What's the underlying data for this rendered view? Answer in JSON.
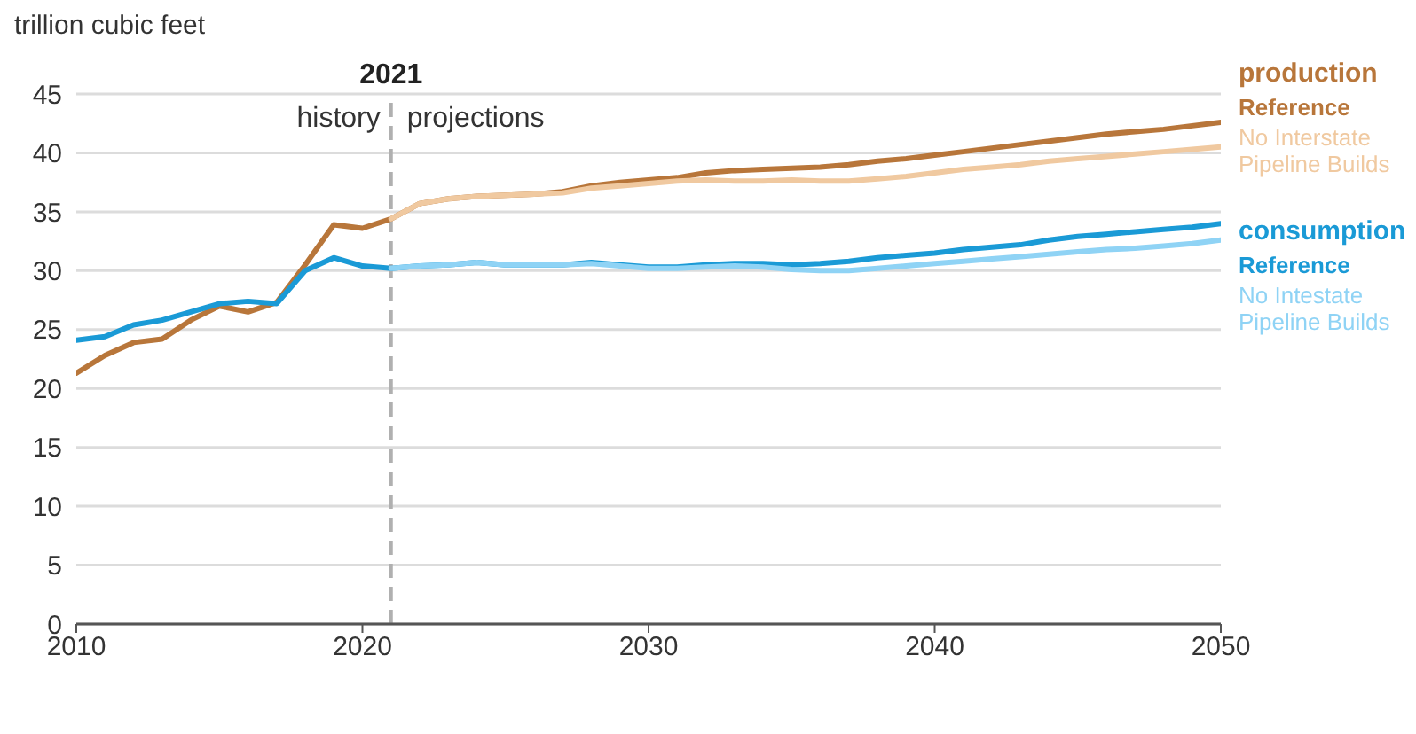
{
  "chart_data": {
    "type": "line",
    "ylabel": "trillion cubic feet",
    "xlim": [
      2010,
      2050
    ],
    "xticks": [
      2010,
      2020,
      2030,
      2040,
      2050
    ],
    "ylim": [
      0,
      45
    ],
    "yticks": [
      0,
      5,
      10,
      15,
      20,
      25,
      30,
      35,
      40,
      45
    ],
    "grid": "y",
    "legend": "right",
    "line_style": "solid",
    "marker": "none",
    "series": [
      {
        "name": "Reference",
        "color": "#b8763a",
        "x": [
          2010,
          2011,
          2012,
          2013,
          2014,
          2015,
          2016,
          2017,
          2018,
          2019,
          2020,
          2021,
          2022,
          2023,
          2024,
          2025,
          2026,
          2027,
          2028,
          2029,
          2030,
          2031,
          2032,
          2033,
          2034,
          2035,
          2036,
          2037,
          2038,
          2039,
          2040,
          2041,
          2042,
          2043,
          2044,
          2045,
          2046,
          2047,
          2048,
          2049,
          2050
        ],
        "values": [
          21.3,
          22.8,
          23.9,
          24.2,
          25.8,
          27.0,
          26.5,
          27.3,
          30.5,
          33.9,
          33.6,
          34.4,
          35.7,
          36.1,
          36.3,
          36.4,
          36.5,
          36.7,
          37.2,
          37.5,
          37.7,
          37.9,
          38.3,
          38.5,
          38.6,
          38.7,
          38.8,
          39.0,
          39.3,
          39.5,
          39.8,
          40.1,
          40.4,
          40.7,
          41.0,
          41.3,
          41.6,
          41.8,
          42.0,
          42.3,
          42.6
        ]
      },
      {
        "name": "No Interstate Pipeline Builds",
        "color": "#f0c9a0",
        "x": [
          2021,
          2022,
          2023,
          2024,
          2025,
          2026,
          2027,
          2028,
          2029,
          2030,
          2031,
          2032,
          2033,
          2034,
          2035,
          2036,
          2037,
          2038,
          2039,
          2040,
          2041,
          2042,
          2043,
          2044,
          2045,
          2046,
          2047,
          2048,
          2049,
          2050
        ],
        "values": [
          34.4,
          35.7,
          36.1,
          36.3,
          36.4,
          36.5,
          36.6,
          37.0,
          37.2,
          37.4,
          37.6,
          37.7,
          37.6,
          37.6,
          37.7,
          37.6,
          37.6,
          37.8,
          38.0,
          38.3,
          38.6,
          38.8,
          39.0,
          39.3,
          39.5,
          39.7,
          39.9,
          40.1,
          40.3,
          40.5
        ]
      },
      {
        "name": "Reference",
        "color": "#1a9ad6",
        "x": [
          2010,
          2011,
          2012,
          2013,
          2014,
          2015,
          2016,
          2017,
          2018,
          2019,
          2020,
          2021,
          2022,
          2023,
          2024,
          2025,
          2026,
          2027,
          2028,
          2029,
          2030,
          2031,
          2032,
          2033,
          2034,
          2035,
          2036,
          2037,
          2038,
          2039,
          2040,
          2041,
          2042,
          2043,
          2044,
          2045,
          2046,
          2047,
          2048,
          2049,
          2050
        ],
        "values": [
          24.1,
          24.4,
          25.4,
          25.8,
          26.5,
          27.2,
          27.4,
          27.2,
          30.0,
          31.1,
          30.4,
          30.2,
          30.4,
          30.5,
          30.7,
          30.5,
          30.5,
          30.5,
          30.7,
          30.5,
          30.3,
          30.3,
          30.5,
          30.6,
          30.6,
          30.5,
          30.6,
          30.8,
          31.1,
          31.3,
          31.5,
          31.8,
          32.0,
          32.2,
          32.6,
          32.9,
          33.1,
          33.3,
          33.5,
          33.7,
          34.0
        ]
      },
      {
        "name": "No Intestate Pipeline Builds",
        "color": "#8fd3f5",
        "x": [
          2021,
          2022,
          2023,
          2024,
          2025,
          2026,
          2027,
          2028,
          2029,
          2030,
          2031,
          2032,
          2033,
          2034,
          2035,
          2036,
          2037,
          2038,
          2039,
          2040,
          2041,
          2042,
          2043,
          2044,
          2045,
          2046,
          2047,
          2048,
          2049,
          2050
        ],
        "values": [
          30.2,
          30.4,
          30.5,
          30.7,
          30.5,
          30.5,
          30.5,
          30.6,
          30.4,
          30.2,
          30.2,
          30.3,
          30.4,
          30.3,
          30.1,
          30.0,
          30.0,
          30.2,
          30.4,
          30.6,
          30.8,
          31.0,
          31.2,
          31.4,
          31.6,
          31.8,
          31.9,
          32.1,
          32.3,
          32.6
        ]
      }
    ],
    "ref_lines": [
      {
        "axis": "x",
        "value": 2021,
        "label": "2021",
        "line_style": "dashed",
        "color": "#b0b0b0"
      }
    ],
    "annotations": [
      {
        "text": "history",
        "x": 2021,
        "y": 43
      },
      {
        "text": "projections",
        "x": 2021,
        "y": 43
      },
      "production",
      "consumption"
    ]
  }
}
